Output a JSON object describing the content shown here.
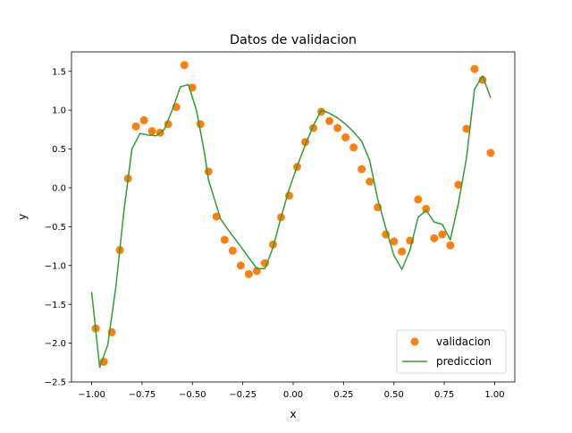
{
  "chart_data": {
    "type": "scatter",
    "title": "Datos de validacion",
    "xlabel": "x",
    "ylabel": "y",
    "xlim": [
      -1.1,
      1.1
    ],
    "ylim": [
      -2.5,
      1.75
    ],
    "grid": false,
    "legend_position": "lower-right",
    "x_ticks": [
      -1.0,
      -0.75,
      -0.5,
      -0.25,
      0.0,
      0.25,
      0.5,
      0.75,
      1.0
    ],
    "x_tick_labels": [
      "−1.00",
      "−0.75",
      "−0.50",
      "−0.25",
      "0.00",
      "0.25",
      "0.50",
      "0.75",
      "1.00"
    ],
    "y_ticks": [
      -2.5,
      -2.0,
      -1.5,
      -1.0,
      -0.5,
      0.0,
      0.5,
      1.0,
      1.5
    ],
    "y_tick_labels": [
      "−2.5",
      "−2.0",
      "−1.5",
      "−1.0",
      "−0.5",
      "0.0",
      "0.5",
      "1.0",
      "1.5"
    ],
    "series": [
      {
        "name": "validacion",
        "kind": "scatter",
        "color": "#ff7f0e",
        "points": [
          [
            -0.98,
            -1.81
          ],
          [
            -0.94,
            -2.24
          ],
          [
            -0.9,
            -1.86
          ],
          [
            -0.86,
            -0.8
          ],
          [
            -0.82,
            0.12
          ],
          [
            -0.78,
            0.79
          ],
          [
            -0.74,
            0.87
          ],
          [
            -0.7,
            0.73
          ],
          [
            -0.66,
            0.71
          ],
          [
            -0.62,
            0.82
          ],
          [
            -0.58,
            1.04
          ],
          [
            -0.54,
            1.58
          ],
          [
            -0.5,
            1.29
          ],
          [
            -0.46,
            0.82
          ],
          [
            -0.42,
            0.21
          ],
          [
            -0.38,
            -0.37
          ],
          [
            -0.34,
            -0.67
          ],
          [
            -0.3,
            -0.81
          ],
          [
            -0.26,
            -1.0
          ],
          [
            -0.22,
            -1.11
          ],
          [
            -0.18,
            -1.07
          ],
          [
            -0.14,
            -0.97
          ],
          [
            -0.1,
            -0.73
          ],
          [
            -0.06,
            -0.38
          ],
          [
            -0.02,
            -0.1
          ],
          [
            0.02,
            0.27
          ],
          [
            0.06,
            0.59
          ],
          [
            0.1,
            0.77
          ],
          [
            0.14,
            0.98
          ],
          [
            0.18,
            0.86
          ],
          [
            0.22,
            0.77
          ],
          [
            0.26,
            0.65
          ],
          [
            0.3,
            0.52
          ],
          [
            0.34,
            0.24
          ],
          [
            0.38,
            0.08
          ],
          [
            0.42,
            -0.25
          ],
          [
            0.46,
            -0.6
          ],
          [
            0.5,
            -0.69
          ],
          [
            0.54,
            -0.82
          ],
          [
            0.58,
            -0.68
          ],
          [
            0.62,
            -0.15
          ],
          [
            0.66,
            -0.27
          ],
          [
            0.7,
            -0.65
          ],
          [
            0.74,
            -0.6
          ],
          [
            0.78,
            -0.74
          ],
          [
            0.82,
            0.04
          ],
          [
            0.86,
            0.76
          ],
          [
            0.9,
            1.53
          ],
          [
            0.94,
            1.39
          ],
          [
            0.98,
            0.45
          ]
        ]
      },
      {
        "name": "prediccion",
        "kind": "line",
        "color": "#2ca02c",
        "points": [
          [
            -1.0,
            -1.34
          ],
          [
            -0.96,
            -2.31
          ],
          [
            -0.92,
            -2.02
          ],
          [
            -0.88,
            -1.28
          ],
          [
            -0.84,
            -0.3
          ],
          [
            -0.8,
            0.5
          ],
          [
            -0.76,
            0.7
          ],
          [
            -0.72,
            0.68
          ],
          [
            -0.68,
            0.67
          ],
          [
            -0.64,
            0.75
          ],
          [
            -0.6,
            1.0
          ],
          [
            -0.56,
            1.3
          ],
          [
            -0.52,
            1.33
          ],
          [
            -0.48,
            1.0
          ],
          [
            -0.44,
            0.45
          ],
          [
            -0.42,
            0.1
          ],
          [
            -0.39,
            -0.15
          ],
          [
            -0.36,
            -0.4
          ],
          [
            -0.32,
            -0.55
          ],
          [
            -0.27,
            -0.72
          ],
          [
            -0.22,
            -0.9
          ],
          [
            -0.18,
            -1.04
          ],
          [
            -0.14,
            -1.04
          ],
          [
            -0.1,
            -0.77
          ],
          [
            -0.06,
            -0.38
          ],
          [
            -0.02,
            -0.02
          ],
          [
            0.02,
            0.28
          ],
          [
            0.06,
            0.55
          ],
          [
            0.1,
            0.8
          ],
          [
            0.14,
            1.0
          ],
          [
            0.18,
            0.96
          ],
          [
            0.22,
            0.9
          ],
          [
            0.26,
            0.82
          ],
          [
            0.3,
            0.72
          ],
          [
            0.34,
            0.6
          ],
          [
            0.38,
            0.35
          ],
          [
            0.42,
            -0.15
          ],
          [
            0.46,
            -0.52
          ],
          [
            0.5,
            -0.87
          ],
          [
            0.54,
            -1.05
          ],
          [
            0.58,
            -0.8
          ],
          [
            0.62,
            -0.38
          ],
          [
            0.66,
            -0.29
          ],
          [
            0.7,
            -0.44
          ],
          [
            0.74,
            -0.47
          ],
          [
            0.78,
            -0.67
          ],
          [
            0.82,
            -0.2
          ],
          [
            0.86,
            0.38
          ],
          [
            0.9,
            1.27
          ],
          [
            0.94,
            1.44
          ],
          [
            0.98,
            1.16
          ]
        ]
      }
    ]
  }
}
